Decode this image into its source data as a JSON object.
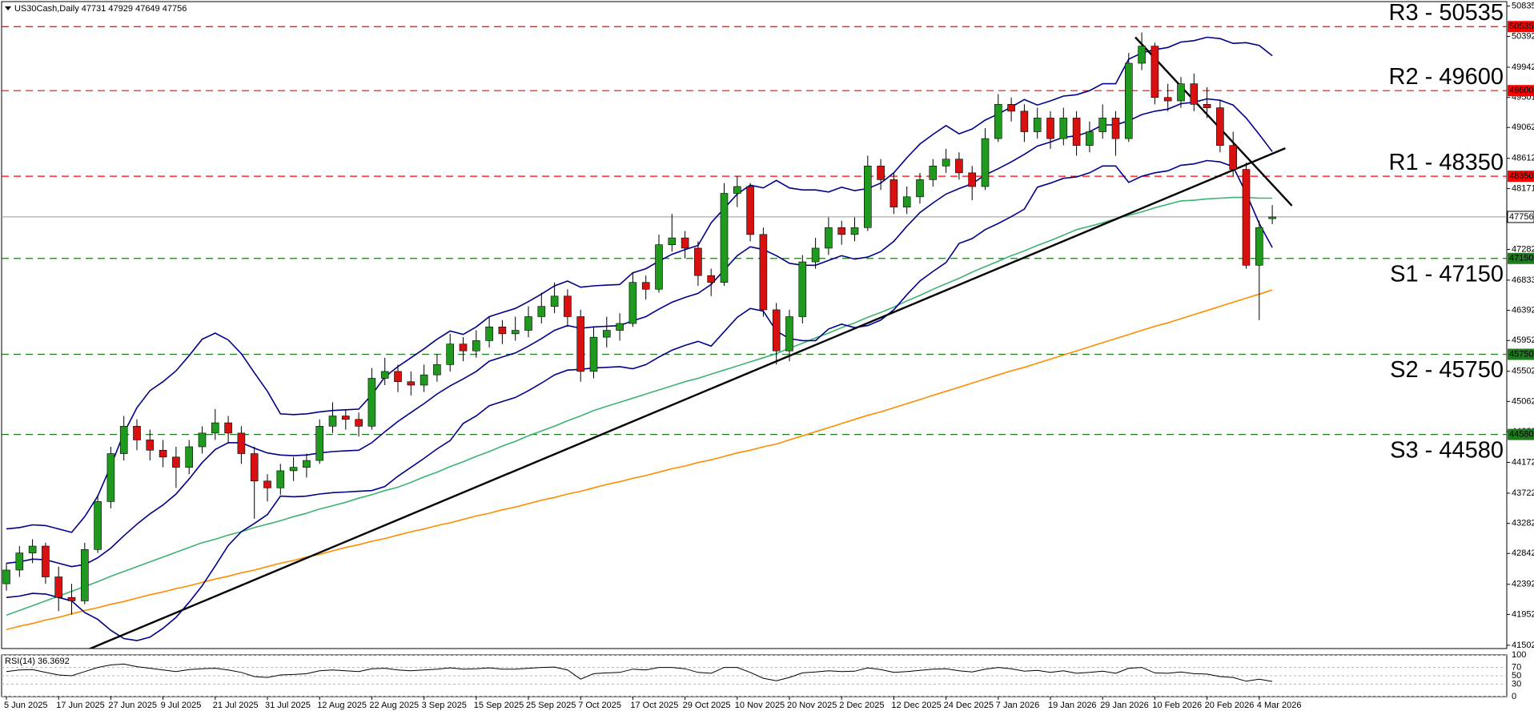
{
  "chart_data": {
    "type": "candlestick",
    "symbol": "US30Cash,Daily",
    "categories": [
      "5 Jun 2025",
      null,
      null,
      null,
      "17 Jun 2025",
      null,
      null,
      null,
      "27 Jun 2025",
      null,
      null,
      null,
      "9 Jul 2025",
      null,
      null,
      null,
      "21 Jul 2025",
      null,
      null,
      null,
      "31 Jul 2025",
      null,
      null,
      null,
      "12 Aug 2025",
      null,
      null,
      null,
      "22 Aug 2025",
      null,
      null,
      null,
      "3 Sep 2025",
      null,
      null,
      null,
      "15 Sep 2025",
      null,
      null,
      null,
      "25 Sep 2025",
      null,
      null,
      null,
      "7 Oct 2025",
      null,
      null,
      null,
      "17 Oct 2025",
      null,
      null,
      null,
      "29 Oct 2025",
      null,
      null,
      null,
      "10 Nov 2025",
      null,
      null,
      null,
      "20 Nov 2025",
      null,
      null,
      null,
      "2 Dec 2025",
      null,
      null,
      null,
      "12 Dec 2025",
      null,
      null,
      null,
      "24 Dec 2025",
      null,
      null,
      null,
      "7 Jan 2026",
      null,
      null,
      null,
      "19 Jan 2026",
      null,
      null,
      null,
      "29 Jan 2026",
      null,
      null,
      null,
      "10 Feb 2026",
      null,
      null,
      null,
      "20 Feb 2026",
      null,
      null,
      null,
      "4 Mar 2026",
      null
    ],
    "open": [
      42400,
      42600,
      42850,
      42950,
      42500,
      42200,
      42150,
      42900,
      43600,
      44300,
      44700,
      44500,
      44350,
      44250,
      44100,
      44400,
      44600,
      44750,
      44600,
      44300,
      43900,
      43800,
      44050,
      44100,
      44200,
      44700,
      44850,
      44800,
      44700,
      45400,
      45500,
      45350,
      45300,
      45450,
      45600,
      45900,
      45800,
      45950,
      46150,
      46050,
      46100,
      46300,
      46450,
      46600,
      46300,
      45500,
      46000,
      46100,
      46200,
      46800,
      46700,
      47350,
      47450,
      47300,
      46900,
      46800,
      48100,
      48200,
      47500,
      46400,
      45800,
      46300,
      47100,
      47300,
      47600,
      47500,
      47600,
      48500,
      48300,
      47900,
      48050,
      48300,
      48500,
      48600,
      48400,
      48200,
      48900,
      49400,
      49300,
      49000,
      49200,
      48900,
      49200,
      48800,
      49000,
      49200,
      48900,
      50000,
      50250,
      49500,
      49450,
      49700,
      49400,
      49350,
      48800,
      48450,
      47050,
      47731
    ],
    "high": [
      42700,
      42950,
      43050,
      43000,
      42650,
      42400,
      43000,
      43700,
      44400,
      44850,
      44800,
      44650,
      44500,
      44400,
      44500,
      44700,
      44950,
      44850,
      44700,
      44400,
      44000,
      44150,
      44250,
      44300,
      44800,
      45050,
      44950,
      44900,
      45550,
      45700,
      45600,
      45500,
      45600,
      45750,
      46050,
      46000,
      46100,
      46300,
      46250,
      46300,
      46450,
      46650,
      46800,
      46700,
      46400,
      46150,
      46300,
      46350,
      46950,
      46900,
      47500,
      47800,
      47550,
      47400,
      47000,
      48250,
      48350,
      48250,
      47600,
      46500,
      46400,
      47200,
      47450,
      47750,
      47700,
      47750,
      48650,
      48600,
      48400,
      48200,
      48400,
      48600,
      48750,
      48700,
      48500,
      49050,
      49550,
      49500,
      49400,
      49350,
      49300,
      49350,
      49300,
      49150,
      49400,
      49300,
      50150,
      50450,
      50300,
      49700,
      49800,
      49850,
      49650,
      49450,
      49000,
      48550,
      47700,
      47929
    ],
    "low": [
      42300,
      42500,
      42700,
      42400,
      42000,
      41950,
      42100,
      42850,
      43500,
      44200,
      44350,
      44200,
      44100,
      43800,
      44000,
      44300,
      44500,
      44450,
      44150,
      43350,
      43600,
      43700,
      43900,
      43950,
      44150,
      44600,
      44650,
      44550,
      44650,
      45300,
      45200,
      45150,
      45200,
      45350,
      45500,
      45650,
      45700,
      45850,
      45900,
      45950,
      46000,
      46200,
      46350,
      46150,
      45350,
      45400,
      45850,
      45950,
      46150,
      46550,
      46650,
      47250,
      47150,
      46750,
      46600,
      46750,
      47900,
      47400,
      46300,
      45600,
      45650,
      46200,
      47000,
      47200,
      47350,
      47400,
      47550,
      48150,
      47800,
      47800,
      47950,
      48200,
      48400,
      48300,
      48000,
      48150,
      48850,
      49150,
      48850,
      48900,
      48750,
      48800,
      48650,
      48700,
      48900,
      48650,
      48850,
      49900,
      49400,
      49300,
      49350,
      49300,
      49200,
      48700,
      48350,
      47000,
      46250,
      47649
    ],
    "close": [
      42600,
      42850,
      42950,
      42500,
      42200,
      42150,
      42900,
      43600,
      44300,
      44700,
      44500,
      44350,
      44250,
      44100,
      44400,
      44600,
      44750,
      44600,
      44300,
      43900,
      43800,
      44050,
      44100,
      44200,
      44700,
      44850,
      44800,
      44700,
      45400,
      45500,
      45350,
      45300,
      45450,
      45600,
      45900,
      45800,
      45950,
      46150,
      46050,
      46100,
      46300,
      46450,
      46600,
      46300,
      45500,
      46000,
      46100,
      46200,
      46800,
      46700,
      47350,
      47450,
      47300,
      46900,
      46800,
      48100,
      48200,
      47500,
      46400,
      45800,
      46300,
      47100,
      47300,
      47600,
      47500,
      47600,
      48500,
      48300,
      47900,
      48050,
      48300,
      48500,
      48600,
      48400,
      48200,
      48900,
      49400,
      49300,
      49000,
      49200,
      48900,
      49200,
      48800,
      49000,
      49200,
      48900,
      50000,
      50250,
      49500,
      49450,
      49700,
      49400,
      49350,
      48800,
      48450,
      47050,
      47600,
      47756
    ],
    "up_color": "#1f9a1f",
    "down_color": "#d81010",
    "ylim": [
      41454,
      50900
    ],
    "yticks": [
      41502,
      41952,
      42392,
      42842,
      43282,
      43722,
      44172,
      44622,
      45062,
      45502,
      45952,
      46392,
      46833,
      47282,
      47722,
      48171,
      48612,
      49062,
      49501,
      49942,
      50392,
      50835
    ],
    "lines": [
      {
        "color": "#ff8c00",
        "values": [
          41730,
          41780,
          41820,
          41870,
          41910,
          41960,
          42010,
          42050,
          42100,
          42140,
          42190,
          42240,
          42280,
          42330,
          42370,
          42420,
          42470,
          42510,
          42560,
          42600,
          42650,
          42700,
          42740,
          42790,
          42830,
          42880,
          42930,
          42970,
          43020,
          43060,
          43110,
          43160,
          43200,
          43250,
          43290,
          43340,
          43390,
          43430,
          43480,
          43520,
          43570,
          43620,
          43660,
          43710,
          43750,
          43800,
          43850,
          43890,
          43940,
          43980,
          44030,
          44080,
          44120,
          44170,
          44210,
          44260,
          44310,
          44350,
          44400,
          44440,
          44500,
          44560,
          44620,
          44680,
          44740,
          44800,
          44860,
          44910,
          44970,
          45030,
          45090,
          45150,
          45210,
          45270,
          45330,
          45390,
          45450,
          45510,
          45560,
          45620,
          45680,
          45740,
          45800,
          45860,
          45920,
          45980,
          46040,
          46100,
          46160,
          46210,
          46270,
          46330,
          46390,
          46450,
          46510,
          46570,
          46630,
          46690
        ]
      },
      {
        "color": "#3cb371",
        "values": [
          41940,
          42010,
          42080,
          42150,
          42220,
          42290,
          42360,
          42430,
          42510,
          42580,
          42650,
          42720,
          42790,
          42860,
          42930,
          43000,
          43050,
          43110,
          43160,
          43220,
          43270,
          43320,
          43380,
          43430,
          43490,
          43540,
          43590,
          43650,
          43700,
          43760,
          43810,
          43880,
          43960,
          44030,
          44110,
          44180,
          44260,
          44330,
          44410,
          44480,
          44560,
          44630,
          44700,
          44780,
          44850,
          44930,
          44990,
          45050,
          45110,
          45170,
          45230,
          45290,
          45350,
          45400,
          45460,
          45520,
          45580,
          45640,
          45700,
          45760,
          45840,
          45910,
          45990,
          46060,
          46140,
          46210,
          46290,
          46360,
          46440,
          46530,
          46610,
          46700,
          46780,
          46860,
          46950,
          47030,
          47110,
          47190,
          47260,
          47340,
          47410,
          47490,
          47570,
          47620,
          47670,
          47730,
          47780,
          47830,
          47890,
          47940,
          47990,
          48000,
          48020,
          48030,
          48040,
          48040,
          48030,
          48030
        ]
      },
      {
        "color": "#00008b",
        "values": [
          42700,
          42720,
          42760,
          42750,
          42700,
          42650,
          42680,
          42780,
          42920,
          43100,
          43270,
          43420,
          43550,
          43710,
          43930,
          44170,
          44360,
          44460,
          44460,
          44380,
          44310,
          44280,
          44270,
          44280,
          44310,
          44330,
          44340,
          44350,
          44460,
          44620,
          44770,
          44900,
          45030,
          45170,
          45290,
          45390,
          45500,
          45650,
          45710,
          45770,
          45870,
          45980,
          46100,
          46170,
          46130,
          46150,
          46160,
          46170,
          46240,
          46300,
          46410,
          46510,
          46580,
          46640,
          46770,
          46980,
          47190,
          47320,
          47280,
          47190,
          47080,
          47050,
          47050,
          47120,
          47190,
          47140,
          47170,
          47250,
          47400,
          47620,
          47820,
          47960,
          48090,
          48170,
          48240,
          48370,
          48460,
          48560,
          48670,
          48790,
          48850,
          48920,
          48940,
          49000,
          49100,
          49100,
          49160,
          49250,
          49300,
          49330,
          49410,
          49430,
          49480,
          49460,
          49390,
          49200,
          48960,
          48710
        ]
      },
      {
        "color": "#00008b",
        "values": [
          43200,
          43220,
          43260,
          43250,
          43200,
          43150,
          43380,
          43680,
          44120,
          44600,
          44970,
          45220,
          45350,
          45510,
          45730,
          45970,
          46060,
          45960,
          45760,
          45480,
          45210,
          44880,
          44870,
          44880,
          44910,
          44930,
          44940,
          44950,
          45160,
          45420,
          45570,
          45700,
          45830,
          45970,
          46090,
          46040,
          46150,
          46300,
          46360,
          46420,
          46520,
          46630,
          46750,
          46820,
          46730,
          46750,
          46760,
          46770,
          46940,
          47000,
          47110,
          47210,
          47280,
          47340,
          47670,
          47880,
          48090,
          48220,
          48180,
          48290,
          48180,
          48150,
          48150,
          48120,
          48190,
          48140,
          48170,
          48250,
          48400,
          48620,
          48820,
          48960,
          49090,
          48970,
          49040,
          49170,
          49260,
          49360,
          49470,
          49390,
          49450,
          49520,
          49540,
          49600,
          49700,
          49700,
          50060,
          50150,
          50200,
          50230,
          50310,
          50330,
          50380,
          50360,
          50290,
          50300,
          50260,
          50110
        ]
      },
      {
        "color": "#00008b",
        "values": [
          42200,
          42220,
          42260,
          42250,
          42200,
          42150,
          41980,
          41880,
          41720,
          41600,
          41570,
          41620,
          41750,
          41910,
          42130,
          42370,
          42660,
          42960,
          43160,
          43280,
          43410,
          43680,
          43670,
          43680,
          43710,
          43730,
          43740,
          43750,
          43760,
          43820,
          43970,
          44100,
          44230,
          44370,
          44490,
          44740,
          44850,
          45000,
          45060,
          45120,
          45220,
          45330,
          45450,
          45520,
          45530,
          45550,
          45560,
          45570,
          45540,
          45600,
          45710,
          45810,
          45880,
          45940,
          45870,
          46080,
          46290,
          46420,
          46380,
          46090,
          45980,
          45950,
          45950,
          46120,
          46190,
          46140,
          46170,
          46250,
          46400,
          46620,
          46820,
          46960,
          47090,
          47370,
          47440,
          47570,
          47660,
          47760,
          47870,
          48190,
          48250,
          48320,
          48340,
          48400,
          48500,
          48500,
          48260,
          48350,
          48400,
          48430,
          48510,
          48530,
          48580,
          48560,
          48490,
          48100,
          47660,
          47310
        ]
      }
    ],
    "trendlines": [
      {
        "color": "#000000",
        "x": [
          5,
          98
        ],
        "values": [
          41340,
          48760
        ]
      },
      {
        "color": "#000000",
        "x": [
          86.5,
          98.5
        ],
        "values": [
          50380,
          47920
        ]
      }
    ],
    "levels": [
      {
        "label": "R3 - 50535",
        "value": 50535,
        "color": "#ff0000"
      },
      {
        "label": "R2 - 49600",
        "value": 49600,
        "color": "#ff0000"
      },
      {
        "label": "R1 - 48350",
        "value": 48350,
        "color": "#ff0000"
      },
      {
        "label": "S1 - 47150",
        "value": 47150,
        "color": "#1e7b1e"
      },
      {
        "label": "S2 - 45750",
        "value": 45750,
        "color": "#1e7b1e"
      },
      {
        "label": "S3 - 44580",
        "value": 44580,
        "color": "#1e7b1e"
      }
    ],
    "rsi": {
      "type": "line",
      "title": "RSI(14)",
      "color": "#000000",
      "values": [
        60,
        64,
        65,
        58,
        52,
        50,
        60,
        70,
        76,
        78,
        72,
        68,
        64,
        60,
        65,
        67,
        68,
        64,
        58,
        48,
        46,
        52,
        53,
        55,
        62,
        64,
        62,
        60,
        67,
        68,
        64,
        62,
        64,
        66,
        69,
        66,
        67,
        69,
        66,
        66,
        68,
        70,
        71,
        64,
        42,
        55,
        57,
        58,
        66,
        64,
        70,
        70,
        67,
        58,
        56,
        70,
        70,
        58,
        44,
        38,
        46,
        57,
        59,
        62,
        60,
        61,
        69,
        65,
        58,
        60,
        63,
        66,
        67,
        62,
        59,
        66,
        70,
        67,
        61,
        63,
        58,
        62,
        56,
        58,
        61,
        56,
        68,
        70,
        57,
        56,
        59,
        55,
        54,
        48,
        46,
        37,
        42,
        36.3692
      ],
      "ylim": [
        0,
        100
      ],
      "yticks": [
        0,
        30,
        50,
        70,
        100
      ]
    }
  }
}
